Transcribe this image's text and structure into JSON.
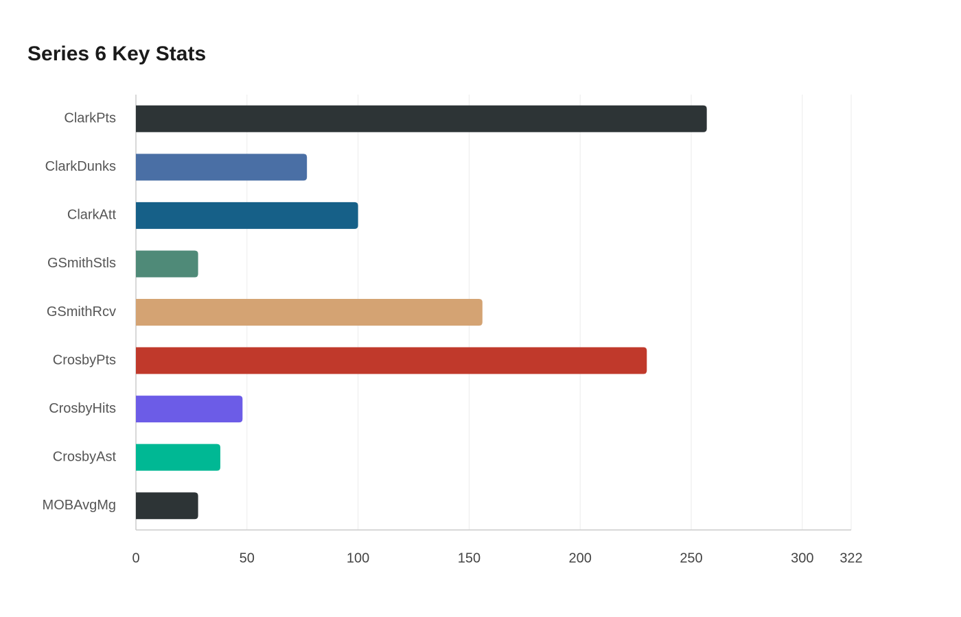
{
  "chart_data": {
    "type": "bar",
    "orientation": "horizontal",
    "title": "Series 6 Key Stats",
    "categories": [
      "ClarkPts",
      "ClarkDunks",
      "ClarkAtt",
      "GSmithStls",
      "GSmithRcv",
      "CrosbyPts",
      "CrosbyHits",
      "CrosbyAst",
      "MOBAvgMg"
    ],
    "values": [
      257,
      77,
      100,
      28,
      156,
      230,
      48,
      38,
      28
    ],
    "colors": [
      "#2d3436",
      "#4a6fa5",
      "#166088",
      "#4f8a78",
      "#d4a373",
      "#c0392b",
      "#6c5ce7",
      "#00b894",
      "#2d3436"
    ],
    "xlim": [
      0,
      322
    ],
    "xticks": [
      0,
      50,
      100,
      150,
      200,
      250,
      300,
      322
    ],
    "grid": true
  }
}
